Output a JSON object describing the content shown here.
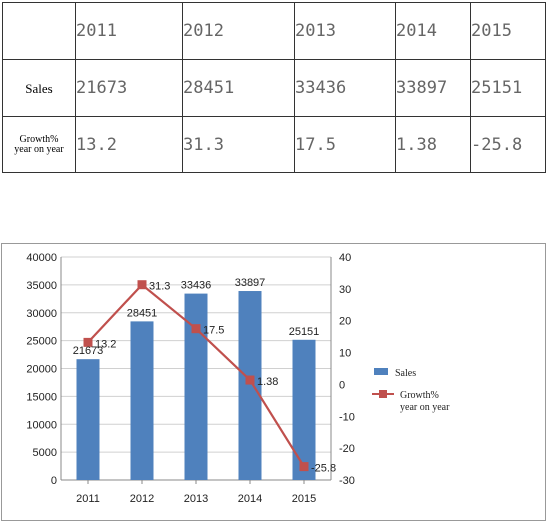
{
  "table": {
    "years": [
      "2011",
      "2012",
      "2013",
      "2014",
      "2015"
    ],
    "sales_label": "Sales",
    "sales": [
      "21673",
      "28451",
      "33436",
      "33897",
      "25151"
    ],
    "growth_label_line1": "Growth%",
    "growth_label_line2": "year on year",
    "growth": [
      "13.2",
      "31.3",
      "17.5",
      "1.38",
      "-25.8"
    ]
  },
  "chart_data": {
    "type": "bar",
    "categories": [
      "2011",
      "2012",
      "2013",
      "2014",
      "2015"
    ],
    "series": [
      {
        "name": "Sales",
        "type": "bar",
        "axis": "left",
        "values": [
          21673,
          28451,
          33436,
          33897,
          25151
        ],
        "labels": [
          "21673",
          "28451",
          "33436",
          "33897",
          "25151"
        ]
      },
      {
        "name": "Growth% year on year",
        "type": "line",
        "axis": "right",
        "values": [
          13.2,
          31.3,
          17.5,
          1.38,
          -25.8
        ],
        "labels": [
          "13.2",
          "31.3",
          "17.5",
          "1.38",
          "-25.8"
        ]
      }
    ],
    "legend": {
      "bar_label": "Sales",
      "line_label_1": "Growth%",
      "line_label_2": "year on year"
    },
    "ylim_left": [
      0,
      40000
    ],
    "yticks_left": [
      "0",
      "5000",
      "10000",
      "15000",
      "20000",
      "25000",
      "30000",
      "35000",
      "40000"
    ],
    "ylim_right": [
      -30,
      40
    ],
    "yticks_right": [
      "-30",
      "-20",
      "-10",
      "0",
      "10",
      "20",
      "30",
      "40"
    ],
    "grid": true,
    "legend_placement": "right",
    "colors": {
      "bar": "#4f81bd",
      "line": "#c0504d"
    }
  }
}
